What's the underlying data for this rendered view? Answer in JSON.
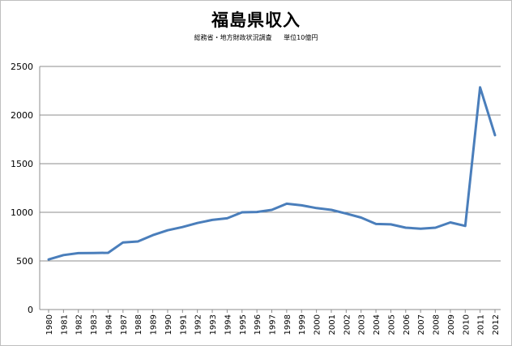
{
  "chart_data": {
    "type": "line",
    "title": "福島県収入",
    "subtitle": "総務省・地方財政状況調査",
    "unit_note": "単位10億円",
    "xlabel": "",
    "ylabel": "",
    "ylim": [
      0,
      2500
    ],
    "yticks": [
      0,
      500,
      1000,
      1500,
      2000,
      2500
    ],
    "grid": true,
    "legend": "none",
    "line_color": "#4a7ebb",
    "categories": [
      "1980",
      "1981",
      "1982",
      "1983",
      "1984",
      "1987",
      "1988",
      "1989",
      "1990",
      "1991",
      "1992",
      "1993",
      "1994",
      "1995",
      "1996",
      "1997",
      "1998",
      "1999",
      "2000",
      "2001",
      "2002",
      "2003",
      "2004",
      "2005",
      "2006",
      "2007",
      "2008",
      "2009",
      "2010",
      "2011",
      "2012"
    ],
    "series": [
      {
        "values": [
          515,
          560,
          580,
          582,
          583,
          690,
          700,
          765,
          815,
          848,
          890,
          922,
          938,
          1000,
          1003,
          1025,
          1088,
          1072,
          1043,
          1025,
          987,
          946,
          880,
          876,
          842,
          832,
          842,
          896,
          860,
          2285,
          1793
        ]
      }
    ]
  }
}
